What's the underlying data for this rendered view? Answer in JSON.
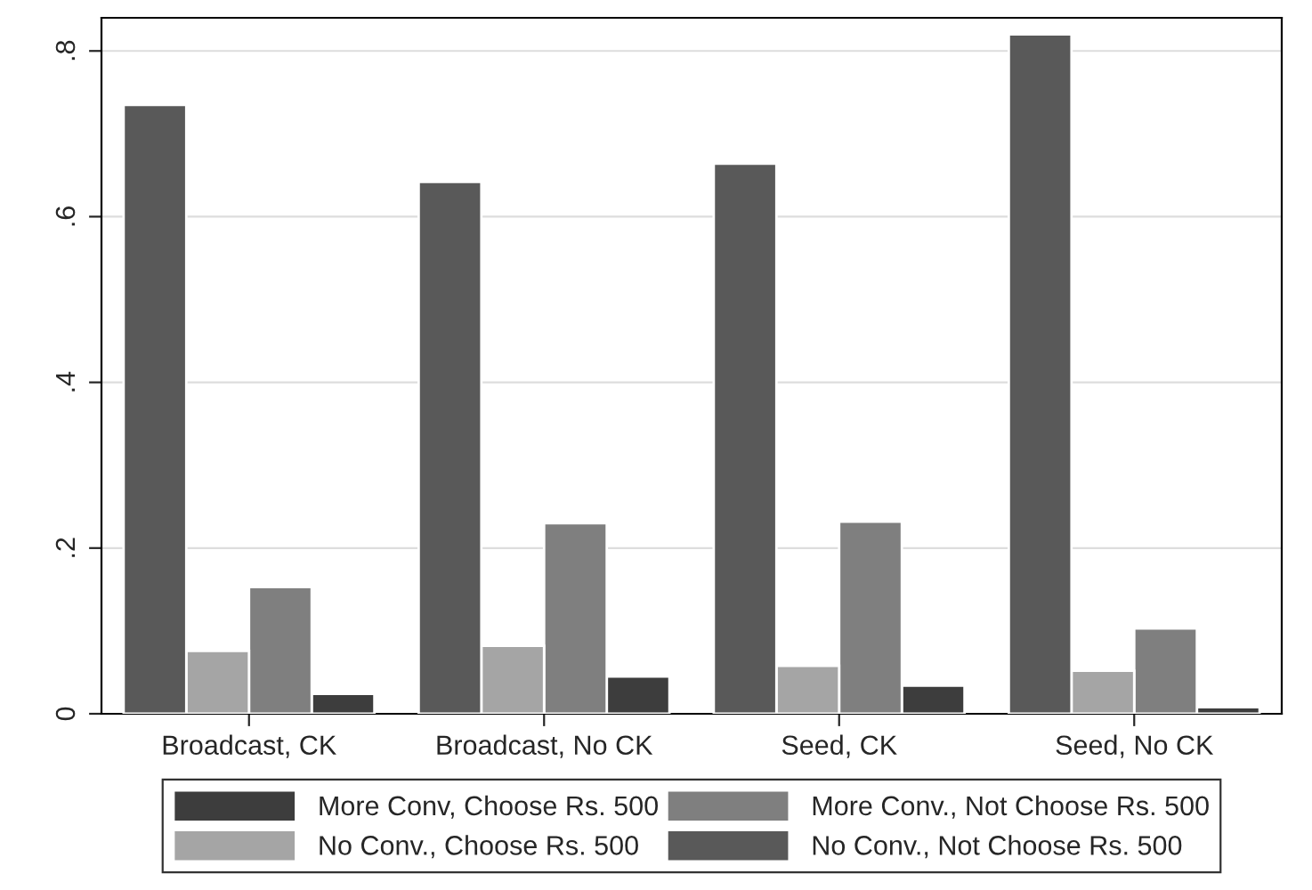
{
  "chart_data": {
    "type": "bar",
    "categories": [
      "Broadcast, CK",
      "Broadcast, No CK",
      "Seed, CK",
      "Seed, No CK"
    ],
    "series": [
      {
        "name": "More Conv, Choose Rs. 500",
        "color": "#3d3d3d",
        "values": [
          0.024,
          0.045,
          0.034,
          0.008
        ]
      },
      {
        "name": "More Conv., Not Choose Rs. 500",
        "color": "#7f7f7f",
        "values": [
          0.153,
          0.23,
          0.232,
          0.103
        ]
      },
      {
        "name": "No Conv., Choose Rs. 500",
        "color": "#a5a5a5",
        "values": [
          0.076,
          0.082,
          0.058,
          0.052
        ]
      },
      {
        "name": "No Conv., Not Choose Rs. 500",
        "color": "#595959",
        "values": [
          0.735,
          0.642,
          0.664,
          0.82
        ]
      }
    ],
    "ylim": [
      0,
      0.84
    ],
    "yticks": [
      0,
      {
        "value": 0.2,
        "label": ".2"
      },
      {
        "value": 0.4,
        "label": ".4"
      },
      {
        "value": 0.6,
        "label": ".6"
      },
      {
        "value": 0.8,
        "label": ".8"
      }
    ],
    "grid": "y",
    "legend": "bottom"
  }
}
